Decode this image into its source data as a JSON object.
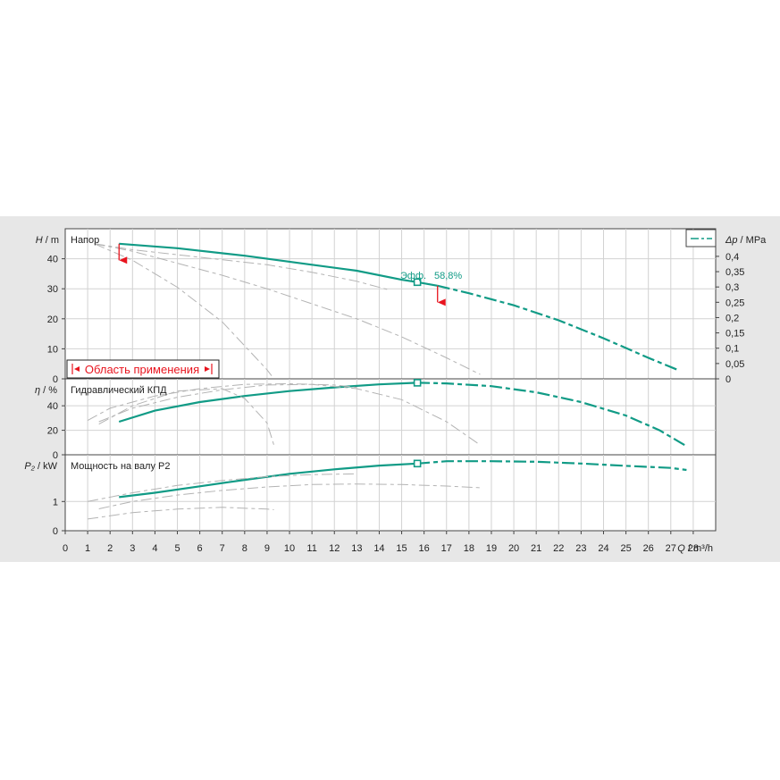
{
  "chart_data": {
    "type": "line",
    "colors": {
      "accent": "#119b86",
      "gray": "#b3b3b3",
      "range": "#e8141e"
    },
    "x_axis": {
      "label_prefix": "Q",
      "label_unit": "m³/h",
      "range": [
        0,
        29
      ],
      "ticks": [
        0,
        1,
        2,
        3,
        4,
        5,
        6,
        7,
        8,
        9,
        10,
        11,
        12,
        13,
        14,
        15,
        16,
        17,
        18,
        19,
        20,
        21,
        22,
        23,
        24,
        25,
        26,
        27,
        28
      ]
    },
    "head_panel": {
      "label": "Напор",
      "y_label_prefix": "H",
      "y_unit": "m",
      "ylim": [
        0,
        50
      ],
      "yticks": [
        0,
        10,
        20,
        30,
        40
      ],
      "secondary_axis": {
        "label_prefix": "Δp",
        "label_unit": "MPa",
        "ticks": [
          "0",
          "0,05",
          "0,1",
          "0,15",
          "0,2",
          "0,25",
          "0,3",
          "0,35",
          "0,4"
        ],
        "tick_values": [
          0,
          5.1,
          10.2,
          15.3,
          20.4,
          25.5,
          30.6,
          35.7,
          40.8
        ]
      },
      "series": [
        {
          "role": "main-solid",
          "x": [
            2.4,
            5,
            8,
            11,
            13,
            15,
            15.7,
            16.6
          ],
          "y": [
            45,
            43.5,
            41,
            38,
            36,
            33,
            32.2,
            31
          ]
        },
        {
          "role": "main-dashed",
          "x": [
            16.6,
            18,
            20,
            22,
            24,
            26,
            27.3
          ],
          "y": [
            31,
            28.5,
            24.5,
            19.5,
            13.5,
            7,
            3
          ]
        },
        {
          "role": "gray",
          "x": [
            1.3,
            3,
            5,
            7,
            9,
            11,
            13,
            15,
            17,
            18.5
          ],
          "y": [
            45,
            42.5,
            38.5,
            34.5,
            30,
            25,
            20,
            14,
            7,
            1.5
          ]
        },
        {
          "role": "gray",
          "x": [
            1.3,
            3,
            5,
            7,
            8,
            9,
            9.2
          ],
          "y": [
            45,
            39.5,
            30.5,
            19,
            11,
            3,
            1
          ]
        },
        {
          "role": "gray",
          "x": [
            1.3,
            3,
            6,
            9,
            11,
            13,
            14.5
          ],
          "y": [
            45,
            43,
            40.5,
            38,
            35.5,
            32.5,
            29.5
          ]
        }
      ],
      "operating_point": {
        "x": 15.7,
        "y": 32.2,
        "label": "Эфф.",
        "value": "58,8%"
      },
      "range_markers": [
        {
          "x": 2.4,
          "y1": 45,
          "y2": 39.5
        },
        {
          "x": 16.6,
          "y1": 31,
          "y2": 25.5
        }
      ],
      "range_label": "Область применения",
      "legend_style": "dashed-line"
    },
    "efficiency_panel": {
      "label": "Гидравлический КПД",
      "y_label_prefix": "η",
      "y_unit": "%",
      "ylim": [
        0,
        62
      ],
      "yticks": [
        0,
        20,
        40
      ],
      "series": [
        {
          "role": "main-solid",
          "x": [
            2.4,
            4,
            6,
            8,
            10,
            12,
            14,
            15.7
          ],
          "y": [
            27,
            36,
            43,
            48,
            52,
            55,
            57.5,
            58.8
          ]
        },
        {
          "role": "main-dashed",
          "x": [
            15.7,
            17,
            19,
            21,
            23,
            25,
            26.5,
            27.7
          ],
          "y": [
            58.8,
            58.3,
            56,
            51,
            43,
            32,
            20,
            7
          ]
        },
        {
          "role": "gray",
          "x": [
            1,
            2,
            4,
            6,
            8,
            10,
            12,
            13
          ],
          "y": [
            28,
            38,
            48,
            54,
            57.5,
            58,
            57,
            55
          ]
        },
        {
          "role": "gray",
          "x": [
            1.5,
            3,
            5,
            7,
            9,
            11,
            13,
            15,
            17,
            18.5
          ],
          "y": [
            27,
            38,
            47,
            53,
            57,
            57.5,
            54,
            45,
            27,
            8
          ]
        },
        {
          "role": "gray",
          "x": [
            1.5,
            3,
            5,
            7,
            8,
            9,
            9.3
          ],
          "y": [
            25,
            40,
            52,
            54,
            46,
            26,
            8
          ]
        }
      ],
      "operating_point": {
        "x": 15.7,
        "y": 58.8
      }
    },
    "power_panel": {
      "label": "Мощность на валу P2",
      "y_label_prefix": "P₂",
      "y_unit": "kW",
      "ylim": [
        0,
        2.6
      ],
      "yticks": [
        0,
        1
      ],
      "series": [
        {
          "role": "main-solid",
          "x": [
            2.4,
            4,
            6,
            8,
            10,
            12,
            14,
            15.7
          ],
          "y": [
            1.15,
            1.3,
            1.52,
            1.74,
            1.95,
            2.1,
            2.23,
            2.3
          ]
        },
        {
          "role": "main-dashed",
          "x": [
            15.7,
            17,
            19,
            21,
            23,
            25,
            27,
            27.7
          ],
          "y": [
            2.3,
            2.38,
            2.38,
            2.36,
            2.3,
            2.22,
            2.15,
            2.08
          ]
        },
        {
          "role": "gray",
          "x": [
            1.5,
            3,
            5,
            7,
            9,
            11,
            13,
            15,
            17,
            18.5
          ],
          "y": [
            0.75,
            1.0,
            1.22,
            1.38,
            1.5,
            1.58,
            1.6,
            1.58,
            1.53,
            1.47
          ]
        },
        {
          "role": "gray",
          "x": [
            1,
            3,
            5,
            7,
            9,
            9.3
          ],
          "y": [
            0.4,
            0.62,
            0.74,
            0.8,
            0.74,
            0.72
          ]
        },
        {
          "role": "gray",
          "x": [
            1,
            3,
            5,
            7,
            9,
            11,
            13
          ],
          "y": [
            1.0,
            1.3,
            1.55,
            1.72,
            1.85,
            1.92,
            1.95
          ]
        }
      ],
      "operating_point": {
        "x": 15.7,
        "y": 2.3
      }
    }
  }
}
